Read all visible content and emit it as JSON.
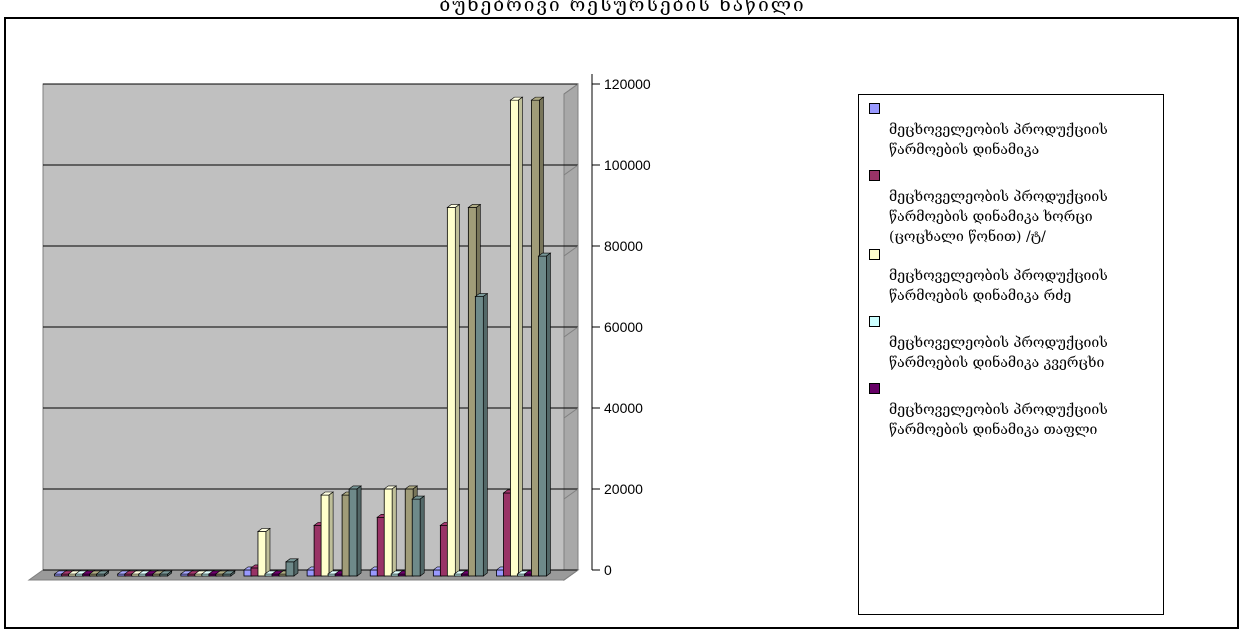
{
  "chart_title": "ბუნებრივი რესურსების ნაწილი",
  "chart_data": {
    "type": "bar",
    "categories": [
      "",
      "",
      "",
      "",
      "",
      "",
      "",
      ""
    ],
    "ylim": [
      0,
      120000
    ],
    "y_ticks": [
      "0",
      "20000",
      "40000",
      "60000",
      "80000",
      "100000",
      "120000"
    ],
    "grid": true,
    "legend_position": "right",
    "series": [
      {
        "name": "მეცხოველეობის პროდუქციის წარმოების დინამიკა",
        "color": "#9999ff",
        "values": [
          0,
          0,
          0,
          1500,
          1500,
          1500,
          1500,
          1500
        ]
      },
      {
        "name": "მეცხოველეობის პროდუქციის წარმოების დინამიკა ხორცი (ცოცხალი წონით) /ტ/",
        "color": "#993366",
        "values": [
          0,
          0,
          0,
          2000,
          12500,
          14500,
          12500,
          20500
        ]
      },
      {
        "name": "მეცხოველეობის პროდუქციის წარმოების დინამიკა რძე",
        "color": "#ffffcc",
        "values": [
          0,
          0,
          0,
          11000,
          20000,
          21500,
          91000,
          117500
        ]
      },
      {
        "name": "მეცხოველეობის პროდუქციის წარმოების დინამიკა კვერცხი",
        "color": "#ccffff",
        "values": [
          0,
          0,
          0,
          0,
          0,
          0,
          0,
          0
        ]
      },
      {
        "name": "მეცხოველეობის პროდუქციის წარმოების დინამიკა თაფლი",
        "color": "#660066",
        "values": [
          0,
          0,
          0,
          0,
          0,
          0,
          0,
          0
        ]
      },
      {
        "name": "",
        "color": "#a09c78",
        "values": [
          0,
          0,
          0,
          0,
          20000,
          21500,
          91000,
          117500
        ]
      },
      {
        "name": "",
        "color": "#6e8a8a",
        "values": [
          0,
          0,
          0,
          3500,
          21500,
          19000,
          69000,
          79000
        ]
      }
    ]
  }
}
